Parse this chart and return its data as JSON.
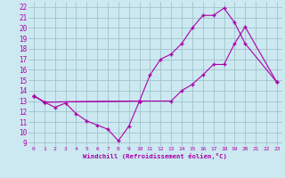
{
  "bg_color": "#cce8f0",
  "grid_color": "#a0c4cc",
  "line_color": "#aa00aa",
  "xlabel": "Windchill (Refroidissement éolien,°C)",
  "xlim": [
    -0.5,
    23.5
  ],
  "ylim": [
    8.7,
    22.5
  ],
  "xticks": [
    0,
    1,
    2,
    3,
    4,
    5,
    6,
    7,
    8,
    9,
    10,
    11,
    12,
    13,
    14,
    15,
    16,
    17,
    18,
    19,
    20,
    21,
    22,
    23
  ],
  "yticks": [
    9,
    10,
    11,
    12,
    13,
    14,
    15,
    16,
    17,
    18,
    19,
    20,
    21,
    22
  ],
  "curves": [
    {
      "x": [
        0,
        1,
        2,
        3,
        4,
        5,
        6,
        7,
        8,
        9,
        10
      ],
      "y": [
        13.5,
        12.9,
        12.4,
        12.8,
        11.8,
        11.1,
        10.7,
        10.3,
        9.2,
        10.6,
        13.0
      ]
    },
    {
      "x": [
        0,
        1,
        10,
        11,
        12,
        13,
        14,
        15,
        16,
        17,
        18,
        19,
        20,
        23
      ],
      "y": [
        13.5,
        12.9,
        13.0,
        15.5,
        17.0,
        17.5,
        18.5,
        20.0,
        21.2,
        21.2,
        21.9,
        20.5,
        18.5,
        14.8
      ]
    },
    {
      "x": [
        0,
        1,
        10,
        13,
        14,
        15,
        16,
        17,
        18,
        19,
        20,
        23
      ],
      "y": [
        13.5,
        12.9,
        13.0,
        13.0,
        14.0,
        14.6,
        15.5,
        16.5,
        16.5,
        18.5,
        20.1,
        14.8
      ]
    }
  ]
}
